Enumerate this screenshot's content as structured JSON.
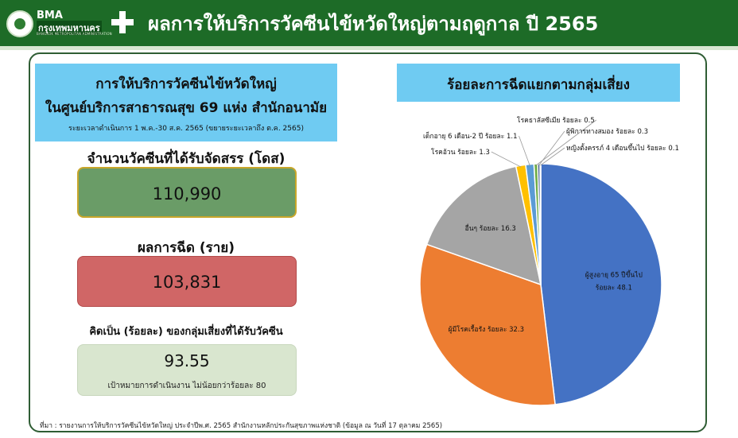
{
  "header": {
    "logo_en": "BMA",
    "logo_th": "กรุงเทพมหานคร",
    "logo_sub": "BANGKOK METROPOLITAN ADMINISTRATION",
    "title": "ผลการให้บริการวัคซีนไข้หวัดใหญ่ตามฤดูกาล ปี 2565"
  },
  "left": {
    "title_line1": "การให้บริการวัคซีนไข้หวัดใหญ่",
    "title_line2": "ในศูนย์บริการสาธารณสุข 69 แห่ง สำนักอนามัย",
    "title_line3": "ระยะเวลาดำเนินการ 1 พ.ค.-30 ส.ค. 2565 (ขยายระยะเวลาถึง  ต.ค. 2565)",
    "doses_label": "จำนวนวัคซีนที่ได้รับจัดสรร (โดส)",
    "doses_value": "110,990",
    "result_label": "ผลการฉีด (ราย)",
    "result_value": "103,831",
    "percent_label": "คิดเป็น (ร้อยละ) ของกลุ่มเสี่ยงที่ได้รับวัคซีน",
    "percent_value": "93.55",
    "target_text": "เป้าหมายการดำเนินงาน  ไม่น้อยกว่าร้อยละ 80"
  },
  "source": "ที่มา : รายงานการให้บริการวัคซีนไข้หวัดใหญ่ ประจำปีพ.ศ. 2565 สำนักงานหลักประกันสุขภาพแห่งชาติ (ข้อมูล ณ วันที่ 17 ตุลาคม 2565)",
  "colors": {
    "header_bg": "#1d6b27",
    "title_box": "#6fcbf2",
    "doses_box": "#6a9c67",
    "result_box": "#d06666",
    "percent_box": "#d9e6cf"
  },
  "chart_data": {
    "type": "pie",
    "title": "ร้อยละการฉีดแยกตามกลุ่มเสี่ยง",
    "slices": [
      {
        "label": "ผู้สูงอายุ 65 ปีขึ้นไป ร้อยละ 48.1",
        "value": 48.1,
        "color": "#4472c4"
      },
      {
        "label": "ผู้มีโรคเรื้อรัง ร้อยละ 32.3",
        "value": 32.3,
        "color": "#ed7d31"
      },
      {
        "label": "อื่นๆ ร้อยละ 16.3",
        "value": 16.3,
        "color": "#a5a5a5"
      },
      {
        "label": "โรคอ้วน ร้อยละ 1.3",
        "value": 1.3,
        "color": "#ffc000"
      },
      {
        "label": "เด็กอายุ 6 เดือน-2 ปี ร้อยละ 1.1",
        "value": 1.1,
        "color": "#5b9bd5"
      },
      {
        "label": "โรคธาลัสซีเมีย ร้อยละ 0.5",
        "value": 0.5,
        "color": "#70ad47"
      },
      {
        "label": "ผู้พิการทางสมอง ร้อยละ 0.3",
        "value": 0.3,
        "color": "#264478"
      },
      {
        "label": "หญิงตั้งครรภ์ 4 เดือนขึ้นไป ร้อยละ 0.1",
        "value": 0.1,
        "color": "#9e480e"
      }
    ],
    "inside_labels": [
      {
        "line1": "ผู้สูงอายุ 65 ปีขึ้นไป",
        "line2": "ร้อยละ 48.1"
      }
    ]
  }
}
